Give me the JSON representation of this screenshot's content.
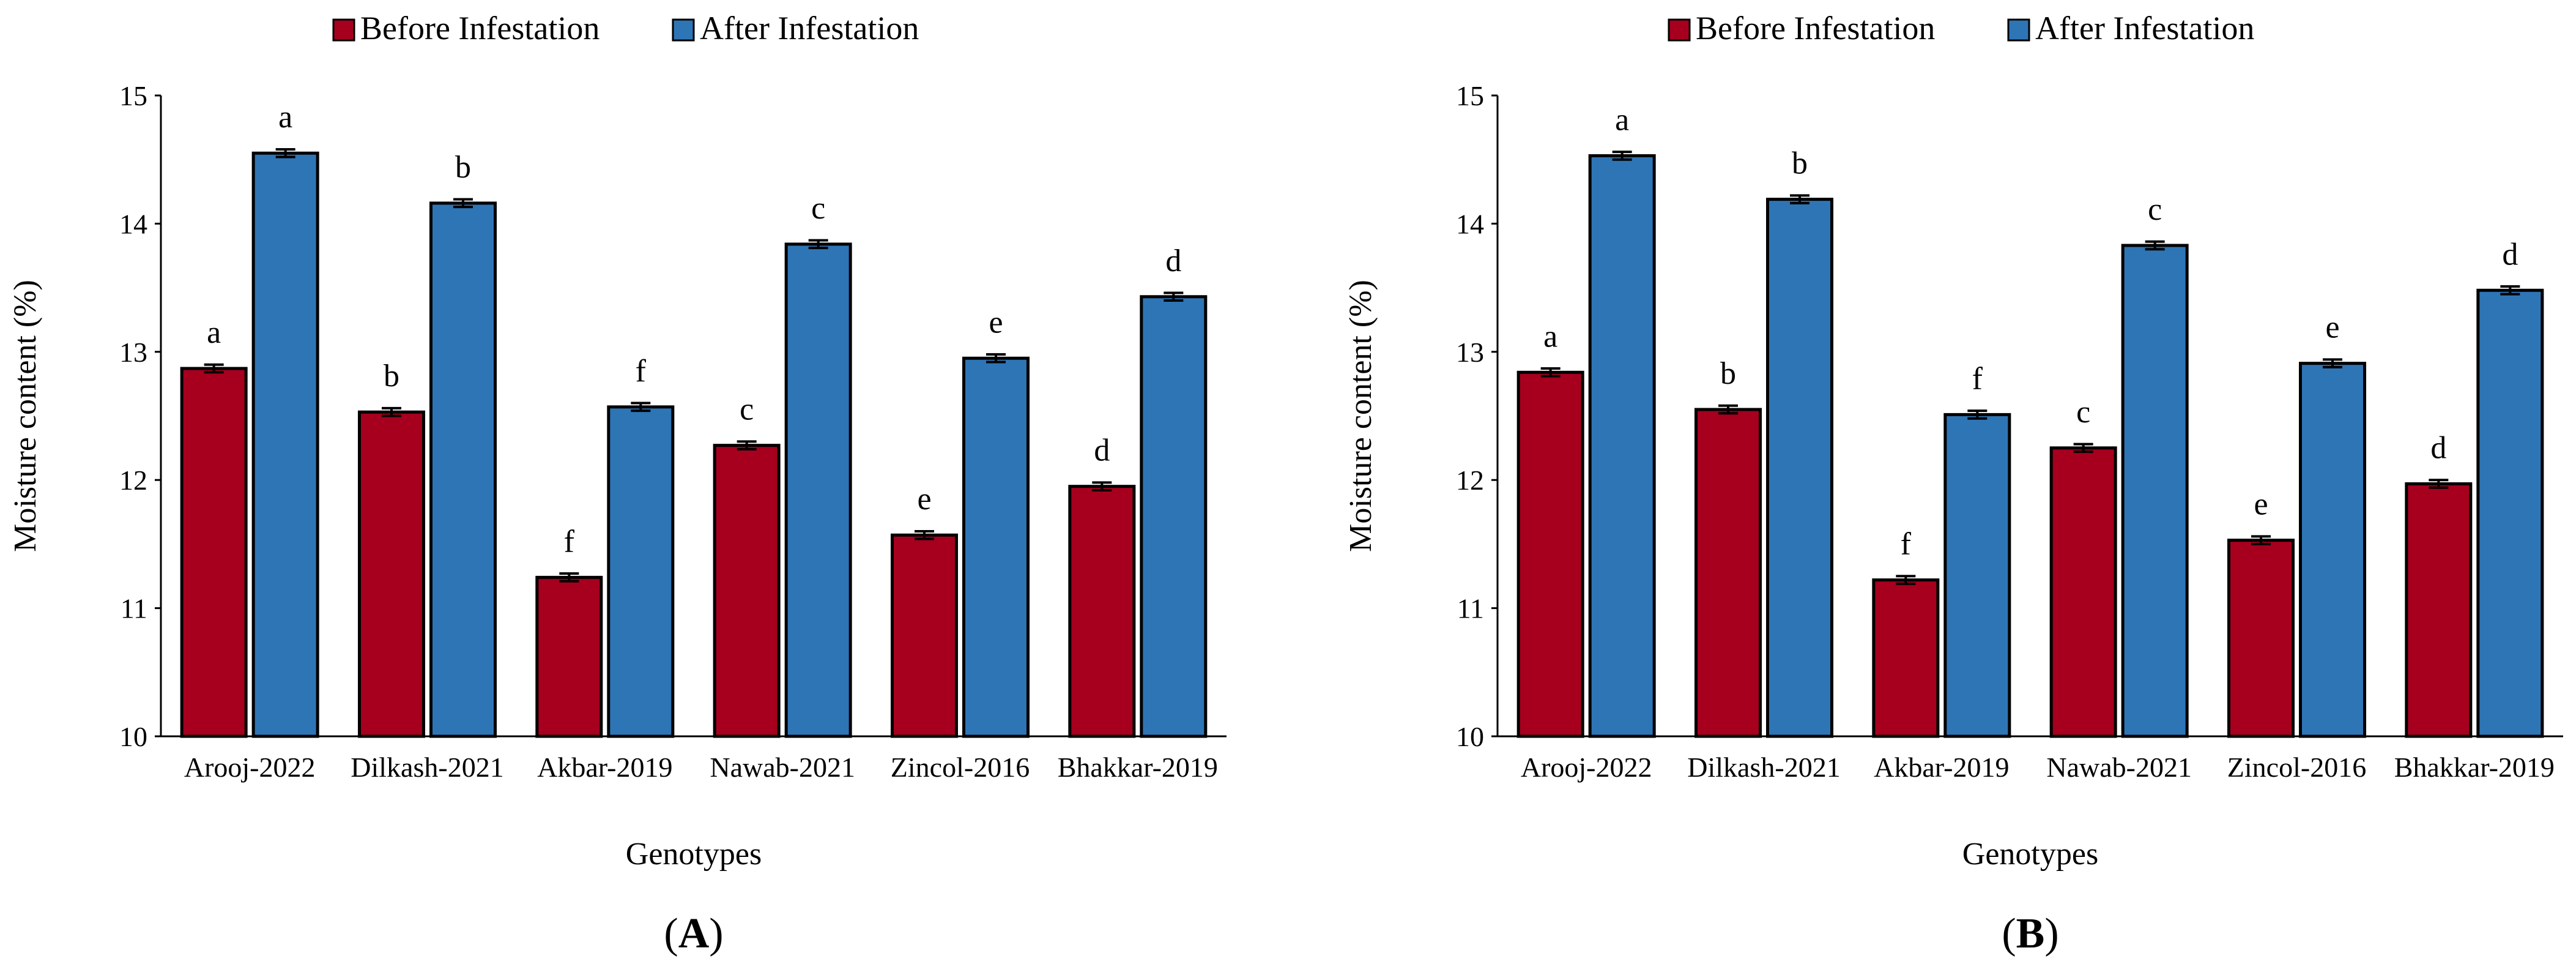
{
  "legend": {
    "before": "Before Infestation",
    "after": "After Infestation"
  },
  "colors": {
    "before": "#A6001E",
    "after": "#2E75B6",
    "axis": "#000000"
  },
  "chart_data": [
    {
      "type": "bar",
      "panel_label": "A",
      "xlabel": "Genotypes",
      "ylabel": "Moisture content (%)",
      "ylim": [
        10,
        15
      ],
      "yticks": [
        "10",
        "11",
        "12",
        "13",
        "14",
        "15"
      ],
      "categories": [
        "Arooj-2022",
        "Dilkash-2021",
        "Akbar-2019",
        "Nawab-2021",
        "Zincol-2016",
        "Bhakkar-2019"
      ],
      "series": [
        {
          "name": "Before Infestation",
          "values": [
            12.87,
            12.53,
            11.24,
            12.27,
            11.57,
            11.95
          ],
          "errors": [
            0.03,
            0.03,
            0.03,
            0.03,
            0.03,
            0.03
          ],
          "letters": [
            "a",
            "b",
            "f",
            "c",
            "e",
            "d"
          ]
        },
        {
          "name": "After Infestation",
          "values": [
            14.55,
            14.16,
            12.57,
            13.84,
            12.95,
            13.43
          ],
          "errors": [
            0.03,
            0.03,
            0.03,
            0.03,
            0.03,
            0.03
          ],
          "letters": [
            "a",
            "b",
            "f",
            "c",
            "e",
            "d"
          ]
        }
      ]
    },
    {
      "type": "bar",
      "panel_label": "B",
      "xlabel": "Genotypes",
      "ylabel": "Moisture content (%)",
      "ylim": [
        10,
        15
      ],
      "yticks": [
        "10",
        "11",
        "12",
        "13",
        "14",
        "15"
      ],
      "categories": [
        "Arooj-2022",
        "Dilkash-2021",
        "Akbar-2019",
        "Nawab-2021",
        "Zincol-2016",
        "Bhakkar-2019"
      ],
      "series": [
        {
          "name": "Before Infestation",
          "values": [
            12.84,
            12.55,
            11.22,
            12.25,
            11.53,
            11.97
          ],
          "errors": [
            0.03,
            0.03,
            0.03,
            0.03,
            0.03,
            0.03
          ],
          "letters": [
            "a",
            "b",
            "f",
            "c",
            "e",
            "d"
          ]
        },
        {
          "name": "After Infestation",
          "values": [
            14.53,
            14.19,
            12.51,
            13.83,
            12.91,
            13.48
          ],
          "errors": [
            0.03,
            0.03,
            0.03,
            0.03,
            0.03,
            0.03
          ],
          "letters": [
            "a",
            "b",
            "f",
            "c",
            "e",
            "d"
          ]
        }
      ]
    }
  ]
}
